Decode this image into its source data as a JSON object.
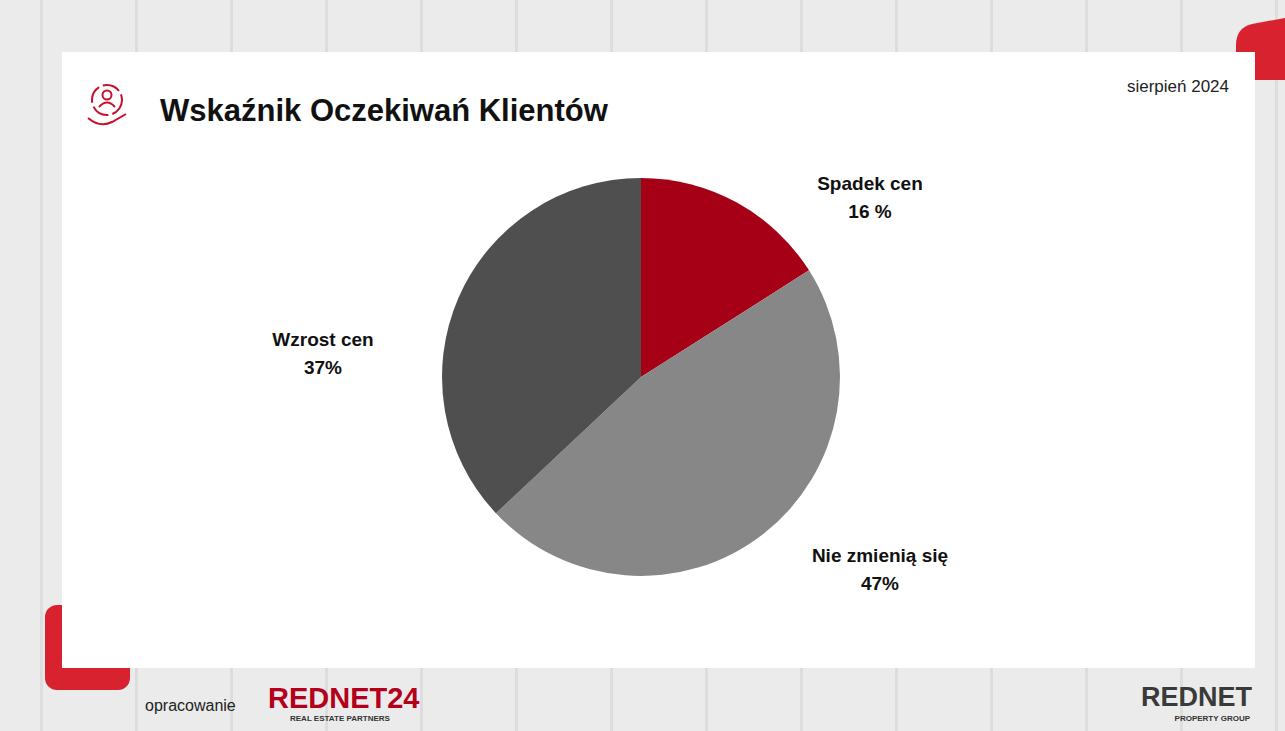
{
  "chart_data": {
    "type": "pie",
    "title": "Wskaźnik Oczekiwań Klientów",
    "subtitle": "sierpień 2024",
    "categories": [
      "Spadek cen",
      "Nie zmienią się",
      "Wzrost cen"
    ],
    "values": [
      16,
      47,
      37
    ],
    "value_labels": [
      "16 %",
      "47%",
      "37%"
    ],
    "colors": [
      "#a50016",
      "#878787",
      "#4f4f4f"
    ],
    "data_labels": true,
    "annotations": [
      "opracowanie",
      "REDNET24",
      "REAL ESTATE PARTNERS",
      "REDNET",
      "PROPERTY GROUP"
    ]
  }
}
